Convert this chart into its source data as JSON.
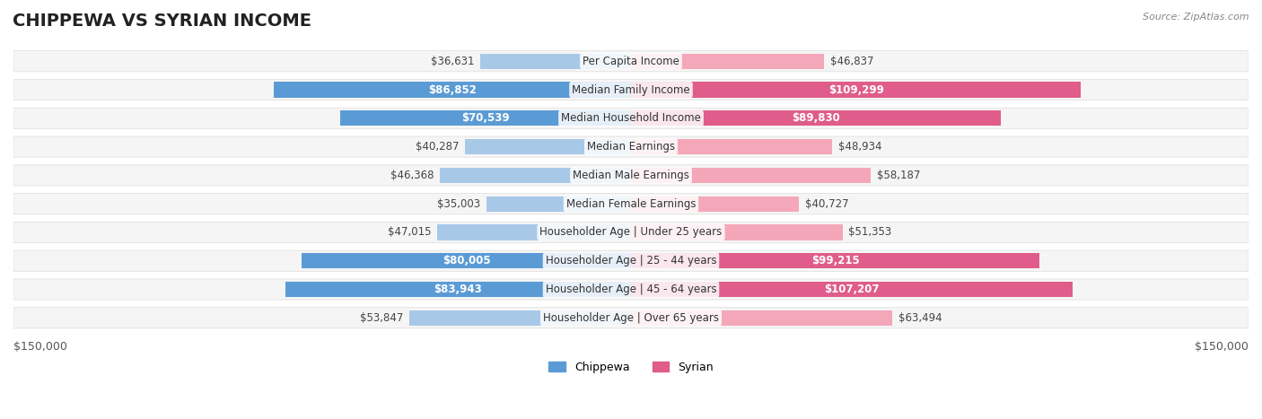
{
  "title": "CHIPPEWA VS SYRIAN INCOME",
  "source": "Source: ZipAtlas.com",
  "categories": [
    "Per Capita Income",
    "Median Family Income",
    "Median Household Income",
    "Median Earnings",
    "Median Male Earnings",
    "Median Female Earnings",
    "Householder Age | Under 25 years",
    "Householder Age | 25 - 44 years",
    "Householder Age | 45 - 64 years",
    "Householder Age | Over 65 years"
  ],
  "chippewa_values": [
    36631,
    86852,
    70539,
    40287,
    46368,
    35003,
    47015,
    80005,
    83943,
    53847
  ],
  "syrian_values": [
    46837,
    109299,
    89830,
    48934,
    58187,
    40727,
    51353,
    99215,
    107207,
    63494
  ],
  "chippewa_labels": [
    "$36,631",
    "$86,852",
    "$70,539",
    "$40,287",
    "$46,368",
    "$35,003",
    "$47,015",
    "$80,005",
    "$83,943",
    "$53,847"
  ],
  "syrian_labels": [
    "$46,837",
    "$109,299",
    "$89,830",
    "$48,934",
    "$58,187",
    "$40,727",
    "$51,353",
    "$99,215",
    "$107,207",
    "$63,494"
  ],
  "chippewa_color_light": "#a8c8e8",
  "chippewa_color_dark": "#5b9bd5",
  "syrian_color_light": "#f4a7b9",
  "syrian_color_dark": "#e05c8a",
  "max_value": 150000,
  "bg_row_color": "#f0f0f0",
  "bg_white": "#ffffff",
  "legend_chippewa": "Chippewa",
  "legend_syrian": "Syrian",
  "xlabel_left": "$150,000",
  "xlabel_right": "$150,000",
  "title_fontsize": 14,
  "label_fontsize": 8.5,
  "category_fontsize": 8.5,
  "axis_fontsize": 9
}
